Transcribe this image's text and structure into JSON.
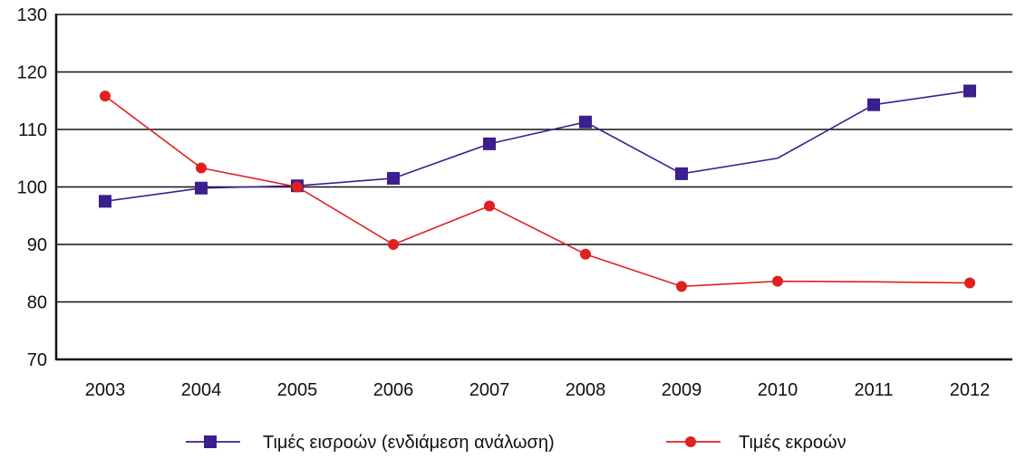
{
  "chart_data": {
    "type": "line",
    "title": "",
    "xlabel": "",
    "ylabel": "",
    "categories": [
      "2003",
      "2004",
      "2005",
      "2006",
      "2007",
      "2008",
      "2009",
      "2010",
      "2011",
      "2012"
    ],
    "ylim": [
      70,
      130
    ],
    "yticks": [
      70,
      80,
      90,
      100,
      110,
      120,
      130
    ],
    "grid": true,
    "legend_position": "bottom",
    "series": [
      {
        "name": "Τιμές εισροών (ενδιάμεση ανάλωση)",
        "color": "#3b1f8f",
        "marker": "square",
        "values": [
          97.5,
          99.8,
          100.2,
          101.5,
          107.5,
          111.3,
          102.3,
          105.0,
          114.3,
          116.7
        ],
        "marker_shown": [
          true,
          true,
          true,
          true,
          true,
          true,
          true,
          false,
          true,
          true
        ]
      },
      {
        "name": "Τιμές εκροών",
        "color": "#e02020",
        "marker": "circle",
        "values": [
          115.8,
          103.3,
          100.0,
          90.0,
          96.7,
          88.3,
          82.7,
          83.6,
          83.5,
          83.3
        ],
        "marker_shown": [
          true,
          true,
          true,
          true,
          true,
          true,
          true,
          true,
          false,
          true
        ]
      }
    ]
  }
}
